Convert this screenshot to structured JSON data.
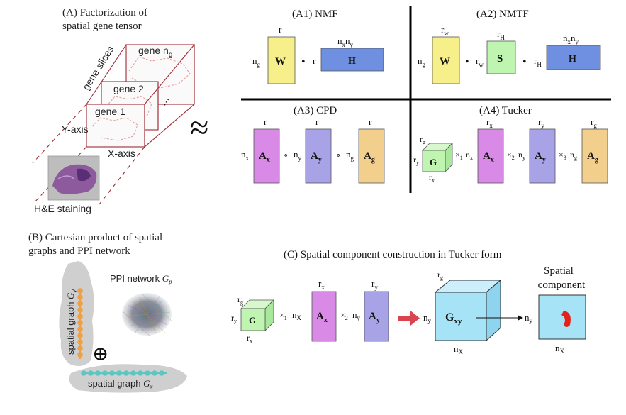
{
  "panelA": {
    "title_line1": "(A) Factorization of",
    "title_line2": "spatial gene tensor",
    "gene_slices": "gene slices",
    "gene_ng": "gene n",
    "gene_ng_sub": "g",
    "gene_2": "gene 2",
    "gene_1": "gene 1",
    "dots": "...",
    "y_axis": "Y-axis",
    "x_axis": "X-axis",
    "he": "H&E staining",
    "approx": "≈"
  },
  "A1": {
    "title": "(A1) NMF",
    "W": "W",
    "H": "H",
    "r_top": "r",
    "r_mid": "r",
    "ng": "n",
    "ng_sub": "g",
    "nxny_a": "n",
    "nxny_a_sub": "x",
    "nxny_b": "n",
    "nxny_b_sub": "y",
    "dot": "•"
  },
  "A2": {
    "title": "(A2) NMTF",
    "W": "W",
    "S": "S",
    "H": "H",
    "rw": "r",
    "rw_sub": "w",
    "rH": "r",
    "rH_sub": "H",
    "ng": "n",
    "ng_sub": "g",
    "nxny_a": "n",
    "nxny_a_sub": "x",
    "nxny_b": "n",
    "nxny_b_sub": "y",
    "dot": "•"
  },
  "A3": {
    "title": "(A3) CPD",
    "A": "A",
    "sub_x": "x",
    "sub_y": "y",
    "sub_g": "g",
    "r": "r",
    "n": "n",
    "circ": "∘"
  },
  "A4": {
    "title": "(A4) Tucker",
    "G": "G",
    "A": "A",
    "r": "r",
    "n": "n",
    "sub_x": "x",
    "sub_y": "y",
    "sub_g": "g",
    "times": "×",
    "m1": "1",
    "m2": "2",
    "m3": "3"
  },
  "panelB": {
    "title_line1": "(B) Cartesian product of spatial",
    "title_line2": "graphs and PPI network",
    "ppi": "PPI network ",
    "Gp": "G",
    "Gp_sub": "p",
    "sg_vert": "spatial graph ",
    "Gy": "G",
    "Gy_sub": "y",
    "sg_horiz": "spatial graph  ",
    "Gx": "G",
    "Gx_sub": "x",
    "oplus": "⊕"
  },
  "panelC": {
    "title": "(C) Spatial component construction in Tucker form",
    "G": "G",
    "A": "A",
    "Gxy": "G",
    "Gxy_sub": "xy",
    "r": "r",
    "n": "n",
    "sub_x": "x",
    "sub_y": "y",
    "sub_g": "g",
    "sub_X": "X",
    "times": "×",
    "m1": "1",
    "m2": "2",
    "spatial_line1": "Spatial",
    "spatial_line2": "component"
  },
  "colors": {
    "yellow": "#f7f08a",
    "blue": "#6f8fe0",
    "green": "#bff5b0",
    "pink": "#d88ae6",
    "lavender": "#a8a2e6",
    "orange": "#f3cf8e",
    "cyan": "#a7e3f7",
    "darkred": "#9e2a34",
    "graph_orange": "#f0a040",
    "graph_teal": "#5cc7c0"
  }
}
